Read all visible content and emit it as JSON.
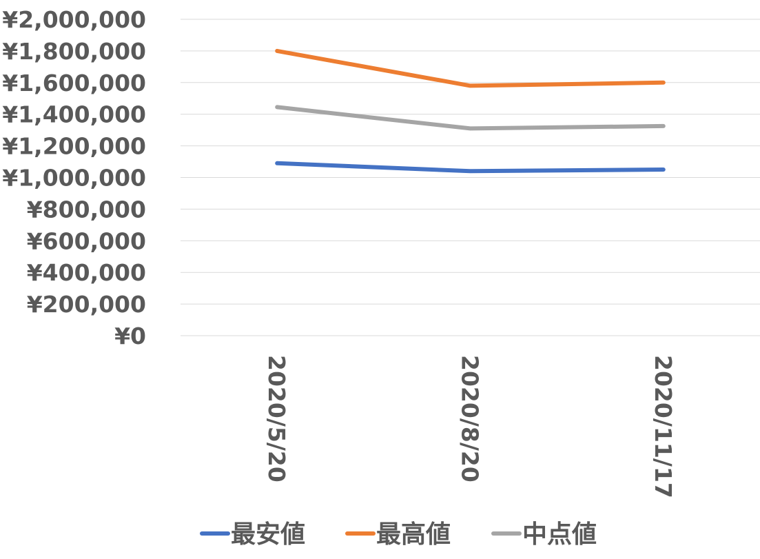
{
  "chart_data": {
    "type": "line",
    "title": "",
    "xlabel": "",
    "ylabel": "",
    "categories": [
      "2020/5/20",
      "2020/8/20",
      "2020/11/17"
    ],
    "series": [
      {
        "name": "最安値",
        "color": "#4472C4",
        "values": [
          1090000,
          1040000,
          1050000
        ]
      },
      {
        "name": "最高値",
        "color": "#ED7D31",
        "values": [
          1800000,
          1580000,
          1600000
        ]
      },
      {
        "name": "中点値",
        "color": "#A5A5A5",
        "values": [
          1445000,
          1310000,
          1325000
        ]
      }
    ],
    "ylim": [
      0,
      2000000
    ],
    "yticks": [
      0,
      200000,
      400000,
      600000,
      800000,
      1000000,
      1200000,
      1400000,
      1600000,
      1800000,
      2000000
    ],
    "ytick_labels": [
      "¥0",
      "¥200,000",
      "¥400,000",
      "¥600,000",
      "¥800,000",
      "¥1,000,000",
      "¥1,200,000",
      "¥1,400,000",
      "¥1,600,000",
      "¥1,800,000",
      "¥2,000,000"
    ],
    "grid": true,
    "legend_position": "bottom"
  }
}
